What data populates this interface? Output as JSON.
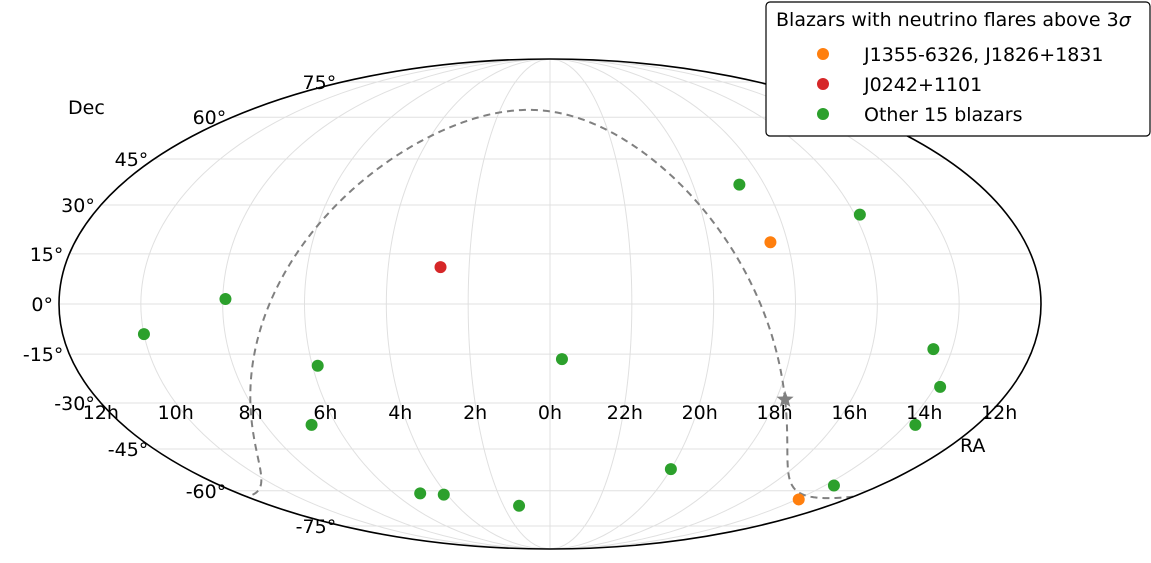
{
  "chart_data": {
    "type": "scatter",
    "projection": "mollweide",
    "title": "",
    "xlabel": "RA",
    "ylabel": "Dec",
    "grid": true,
    "ra_tick_labels": [
      "12h",
      "10h",
      "8h",
      "6h",
      "4h",
      "2h",
      "0h",
      "22h",
      "20h",
      "18h",
      "16h",
      "14h",
      "12h"
    ],
    "dec_ticks": [
      {
        "dec": 75,
        "label": "75°"
      },
      {
        "dec": 60,
        "label": "60°"
      },
      {
        "dec": 45,
        "label": "45°"
      },
      {
        "dec": 30,
        "label": "30°"
      },
      {
        "dec": 15,
        "label": "15°"
      },
      {
        "dec": 0,
        "label": "0°"
      },
      {
        "dec": -15,
        "label": "-15°"
      },
      {
        "dec": -30,
        "label": "-30°"
      },
      {
        "dec": -45,
        "label": "-45°"
      },
      {
        "dec": -60,
        "label": "-60°"
      },
      {
        "dec": -75,
        "label": "-75°"
      }
    ],
    "legend": {
      "title_prefix": "Blazars with neutrino flares above 3",
      "title_symbol": "σ",
      "placement": "top-right"
    },
    "series": [
      {
        "name": "J1355-6326, J1826+1831",
        "color": "#ff7f0e",
        "points": [
          {
            "ra": 276.5,
            "dec": 18.5
          },
          {
            "ra": 208.8,
            "dec": -63.4
          }
        ]
      },
      {
        "name": "J0242+1101",
        "color": "#d62728",
        "points": [
          {
            "ra": 40.6,
            "dec": 11.0
          }
        ]
      },
      {
        "name": "Other 15 blazars",
        "color": "#2ca02c",
        "points": [
          {
            "ra": 280.5,
            "dec": 36.5
          },
          {
            "ra": 238.0,
            "dec": 27.0
          },
          {
            "ra": 150.0,
            "dec": -9.0
          },
          {
            "ra": 119.0,
            "dec": 1.5
          },
          {
            "ra": 88.0,
            "dec": -18.5
          },
          {
            "ra": 100.5,
            "dec": -37.0
          },
          {
            "ra": 355.5,
            "dec": -16.5
          },
          {
            "ra": 217.0,
            "dec": -13.5
          },
          {
            "ra": 208.0,
            "dec": -25.0
          },
          {
            "ra": 206.0,
            "dec": -37.0
          },
          {
            "ra": 300.0,
            "dec": -52.0
          },
          {
            "ra": 75.0,
            "dec": -61.0
          },
          {
            "ra": 62.0,
            "dec": -61.5
          },
          {
            "ra": 20.0,
            "dec": -66.0
          },
          {
            "ra": 205.0,
            "dec": -58.0
          }
        ]
      }
    ],
    "galactic_plane_style": "dashed gray",
    "galactic_center_marker": "star"
  }
}
